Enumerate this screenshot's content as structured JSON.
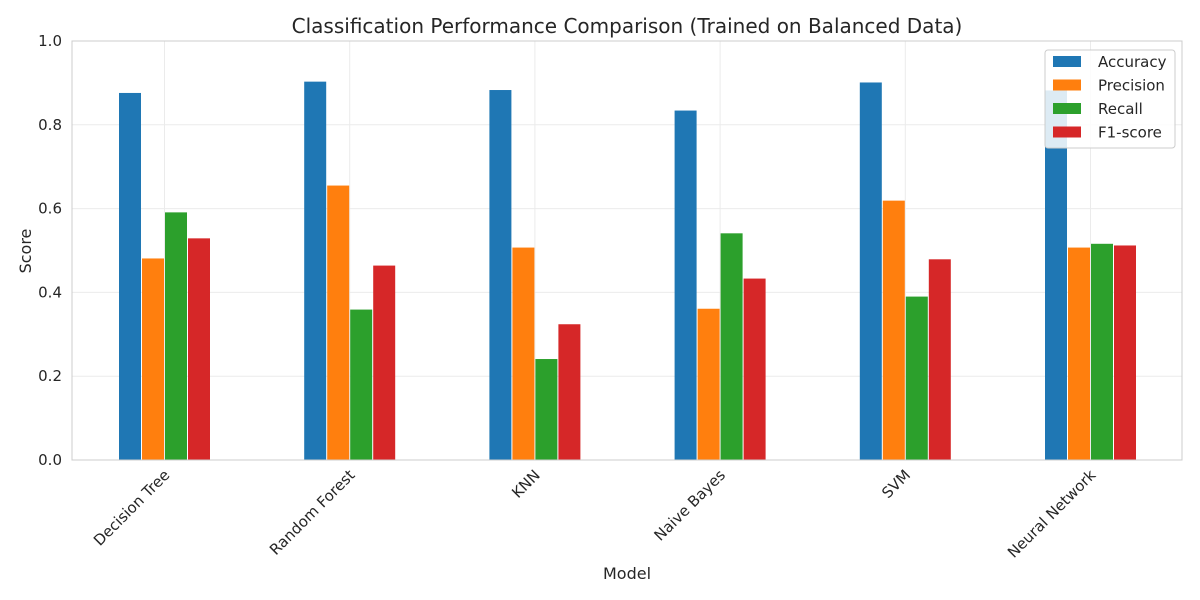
{
  "chart_data": {
    "type": "bar",
    "title": "Classification Performance Comparison (Trained on Balanced Data)",
    "xlabel": "Model",
    "ylabel": "Score",
    "ylim": [
      0,
      1
    ],
    "yticks": [
      0.0,
      0.2,
      0.4,
      0.6,
      0.8,
      1.0
    ],
    "ytick_labels": [
      "0.0",
      "0.2",
      "0.4",
      "0.6",
      "0.8",
      "1.0"
    ],
    "grid": true,
    "legend_position": "top-right",
    "categories": [
      "Decision Tree",
      "Random Forest",
      "KNN",
      "Naive Bayes",
      "SVM",
      "Neural Network"
    ],
    "series": [
      {
        "name": "Accuracy",
        "color": "#1f77b4",
        "values": [
          0.876,
          0.903,
          0.883,
          0.834,
          0.901,
          0.882
        ]
      },
      {
        "name": "Precision",
        "color": "#ff7f0e",
        "values": [
          0.481,
          0.655,
          0.507,
          0.361,
          0.619,
          0.507
        ]
      },
      {
        "name": "Recall",
        "color": "#2ca02c",
        "values": [
          0.591,
          0.359,
          0.241,
          0.541,
          0.39,
          0.516
        ]
      },
      {
        "name": "F1-score",
        "color": "#d62728",
        "values": [
          0.529,
          0.464,
          0.324,
          0.433,
          0.479,
          0.512
        ]
      }
    ]
  }
}
